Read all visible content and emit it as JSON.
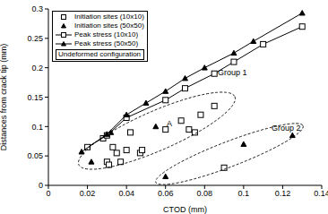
{
  "chart_data": {
    "type": "scatter",
    "x_label": "CTOD (mm)",
    "y_label": "Distances from crack tip (mm)",
    "xlim": [
      0,
      0.14
    ],
    "xticks": [
      0,
      0.02,
      0.04,
      0.06,
      0.08,
      0.1,
      0.12,
      0.14
    ],
    "ylim": [
      0,
      0.3
    ],
    "yticks": [
      0,
      0.05,
      0.1,
      0.15,
      0.2,
      0.25,
      0.3
    ],
    "grid": false,
    "legend": "upper left",
    "annotations": [
      "Undeformed configuration",
      "Group 1",
      "Group 2",
      "A"
    ],
    "series": [
      {
        "name": "Initiation sites (10x10)",
        "color": "#000000",
        "marker": "open_square",
        "line_style": "none",
        "x": [
          0.028,
          0.03,
          0.031,
          0.033,
          0.035,
          0.037,
          0.04,
          0.042,
          0.047,
          0.048,
          0.06,
          0.068,
          0.072,
          0.075,
          0.078,
          0.085,
          0.09
        ],
        "values": [
          0.08,
          0.04,
          0.035,
          0.065,
          0.055,
          0.04,
          0.06,
          0.09,
          0.055,
          0.06,
          0.095,
          0.11,
          0.095,
          0.09,
          0.12,
          0.135,
          0.03
        ]
      },
      {
        "name": "Initiation sites (50x50)",
        "color": "#000000",
        "marker": "filled_triangle",
        "line_style": "none",
        "x": [
          0.022,
          0.032,
          0.055,
          0.06,
          0.1,
          0.125
        ],
        "values": [
          0.04,
          0.09,
          0.1,
          0.015,
          0.07,
          0.085
        ]
      },
      {
        "name": "Peak stress (10x10)",
        "color": "#000000",
        "marker": "open_square",
        "line_style": "solid",
        "x": [
          0.02,
          0.03,
          0.04,
          0.06,
          0.07,
          0.085,
          0.095,
          0.11,
          0.13
        ],
        "values": [
          0.065,
          0.085,
          0.115,
          0.145,
          0.165,
          0.19,
          0.21,
          0.24,
          0.27
        ]
      },
      {
        "name": "Peak stress (50x50)",
        "color": "#000000",
        "marker": "filled_triangle",
        "line_style": "solid",
        "x": [
          0.017,
          0.03,
          0.04,
          0.05,
          0.06,
          0.07,
          0.08,
          0.095,
          0.105,
          0.13
        ],
        "values": [
          0.057,
          0.087,
          0.12,
          0.14,
          0.16,
          0.182,
          0.2,
          0.225,
          0.245,
          0.293
        ]
      }
    ]
  }
}
